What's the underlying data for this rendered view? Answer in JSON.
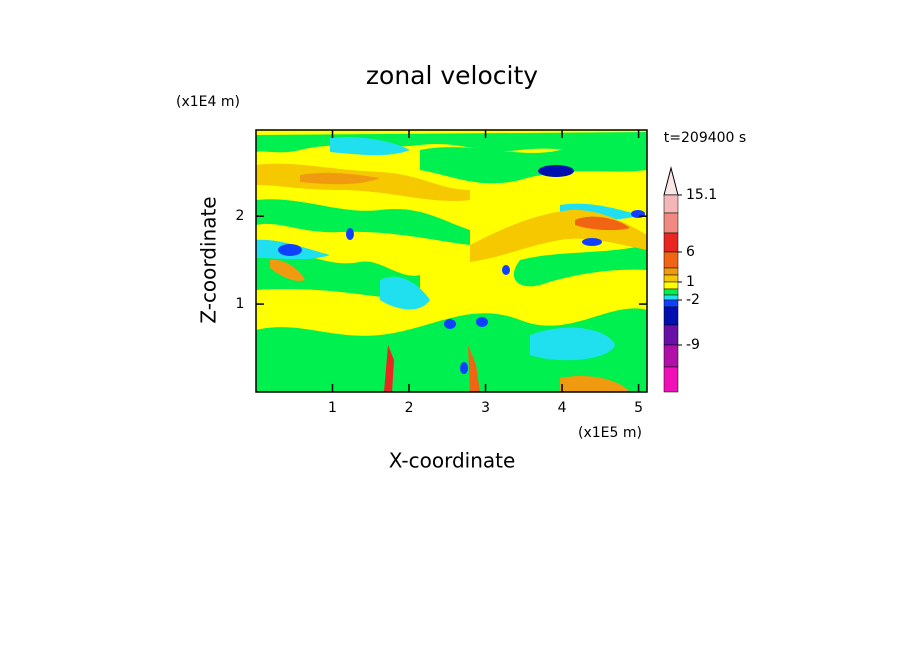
{
  "chart_data": {
    "type": "contour",
    "title": "zonal velocity",
    "x_label": "X-coordinate",
    "y_label": "Z-coordinate",
    "x_unit": "(x1E5 m)",
    "y_unit": "(x1E4 m)",
    "time_label": "t=209400 s",
    "xlim": [
      0,
      5.11
    ],
    "xticks": [
      1,
      2,
      3,
      4,
      5
    ],
    "ylim": [
      0,
      2.98
    ],
    "yticks": [
      1,
      2
    ],
    "colorbar": {
      "colors": [
        "#fbe6e6",
        "#f4b6b6",
        "#f08a80",
        "#e82820",
        "#f06414",
        "#f09a10",
        "#f5c800",
        "#ffff00",
        "#00f050",
        "#20e0f0",
        "#1040ff",
        "#0010b0",
        "#6810a8",
        "#b010a8",
        "#f010b8"
      ],
      "ticks": [
        15.1,
        6,
        1,
        -2,
        -9
      ]
    }
  }
}
